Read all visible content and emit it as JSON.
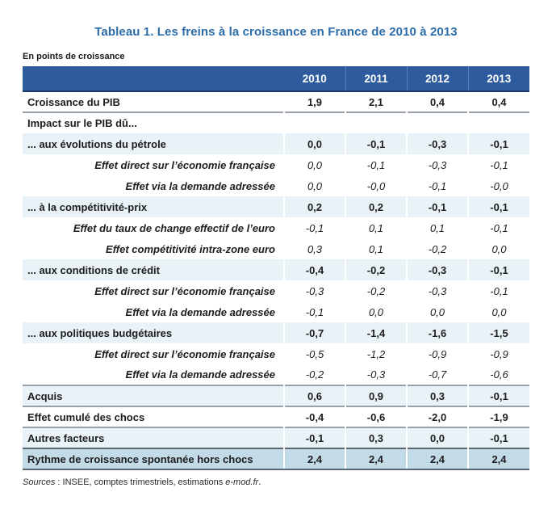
{
  "title": "Tableau 1. Les freins à la croissance en France de 2010 à 2013",
  "unit_note": "En points de croissance",
  "columns": [
    "2010",
    "2011",
    "2012",
    "2013"
  ],
  "rows": [
    {
      "label": "Croissance du PIB",
      "type": "main",
      "rule": "none",
      "values": [
        "1,9",
        "2,1",
        "0,4",
        "0,4"
      ]
    },
    {
      "label": "Impact sur le PIB dû...",
      "type": "main",
      "rule": "gray",
      "values": [
        "",
        "",
        "",
        ""
      ]
    },
    {
      "label": "... aux évolutions du pétrole",
      "type": "shaded",
      "rule": "none",
      "values": [
        "0,0",
        "-0,1",
        "-0,3",
        "-0,1"
      ]
    },
    {
      "label": "Effet direct sur l’économie française",
      "type": "sub",
      "rule": "none",
      "values": [
        "0,0",
        "-0,1",
        "-0,3",
        "-0,1"
      ]
    },
    {
      "label": "Effet via la demande adressée",
      "type": "sub",
      "rule": "none",
      "values": [
        "0,0",
        "-0,0",
        "-0,1",
        "-0,0"
      ]
    },
    {
      "label": "... à la compétitivité-prix",
      "type": "shaded",
      "rule": "none",
      "values": [
        "0,2",
        "0,2",
        "-0,1",
        "-0,1"
      ]
    },
    {
      "label": "Effet du taux de change effectif de l’euro",
      "type": "sub",
      "rule": "none",
      "values": [
        "-0,1",
        "0,1",
        "0,1",
        "-0,1"
      ]
    },
    {
      "label": "Effet compétitivité intra-zone euro",
      "type": "sub",
      "rule": "none",
      "values": [
        "0,3",
        "0,1",
        "-0,2",
        "0,0"
      ]
    },
    {
      "label": "... aux conditions de crédit",
      "type": "shaded",
      "rule": "none",
      "values": [
        "-0,4",
        "-0,2",
        "-0,3",
        "-0,1"
      ]
    },
    {
      "label": "Effet direct sur l’économie française",
      "type": "sub",
      "rule": "none",
      "values": [
        "-0,3",
        "-0,2",
        "-0,3",
        "-0,1"
      ]
    },
    {
      "label": "Effet via la demande adressée",
      "type": "sub",
      "rule": "none",
      "values": [
        "-0,1",
        "0,0",
        "0,0",
        "0,0"
      ]
    },
    {
      "label": "... aux politiques budgétaires",
      "type": "shaded",
      "rule": "none",
      "values": [
        "-0,7",
        "-1,4",
        "-1,6",
        "-1,5"
      ]
    },
    {
      "label": "Effet direct sur l’économie française",
      "type": "sub",
      "rule": "none",
      "values": [
        "-0,5",
        "-1,2",
        "-0,9",
        "-0,9"
      ]
    },
    {
      "label": "Effet via la demande adressée",
      "type": "sub",
      "rule": "none",
      "values": [
        "-0,2",
        "-0,3",
        "-0,7",
        "-0,6"
      ]
    },
    {
      "label": "Acquis",
      "type": "shaded",
      "rule": "gray",
      "values": [
        "0,6",
        "0,9",
        "0,3",
        "-0,1"
      ]
    },
    {
      "label": "Effet cumulé des chocs",
      "type": "main",
      "rule": "gray",
      "values": [
        "-0,4",
        "-0,6",
        "-2,0",
        "-1,9"
      ]
    },
    {
      "label": "Autres facteurs",
      "type": "shaded",
      "rule": "gray",
      "values": [
        "-0,1",
        "0,3",
        "0,0",
        "-0,1"
      ]
    },
    {
      "label": "Rythme de croissance spontanée hors chocs",
      "type": "total",
      "rule": "none",
      "values": [
        "2,4",
        "2,4",
        "2,4",
        "2,4"
      ]
    }
  ],
  "source_note": {
    "sources_word": "Sources",
    "middle": " : INSEE, comptes trimestriels, estimations ",
    "emod": "e-mod.fr",
    "period": "."
  },
  "colors": {
    "header_bg": "#2E5A9E",
    "header_separator": "#5B7CB4",
    "header_bottom_border": "#1C3A6A",
    "shaded_row_bg": "#E9F2F7",
    "total_row_bg": "#C3DAE7",
    "title_color": "#2C6CA9",
    "gray_rule": "#98A1A9",
    "dark_rule": "#5A6774"
  }
}
